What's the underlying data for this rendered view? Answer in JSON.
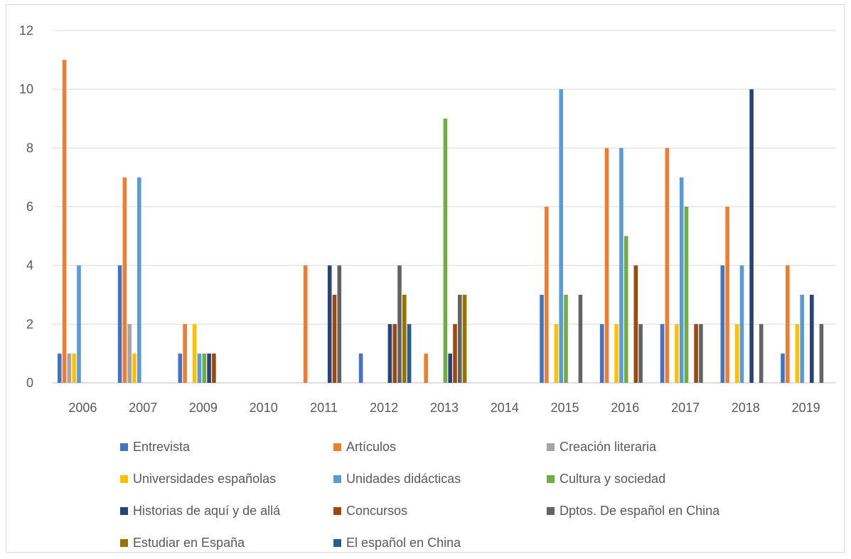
{
  "chart_data": {
    "type": "bar",
    "title": "",
    "xlabel": "",
    "ylabel": "",
    "ylim": [
      0,
      12
    ],
    "y_ticks": [
      "0",
      "2",
      "4",
      "6",
      "8",
      "10",
      "12"
    ],
    "grid": true,
    "legend_position": "bottom",
    "categories": [
      "2006",
      "2007",
      "2009",
      "2010",
      "2011",
      "2012",
      "2013",
      "2014",
      "2015",
      "2016",
      "2017",
      "2018",
      "2019"
    ],
    "series": [
      {
        "name": "Entrevista",
        "color": "#4472c4",
        "values": [
          1,
          4,
          1,
          0,
          0,
          1,
          0,
          0,
          3,
          2,
          2,
          4,
          1
        ]
      },
      {
        "name": "Artículos",
        "color": "#ed7d31",
        "values": [
          11,
          7,
          2,
          0,
          4,
          0,
          1,
          0,
          6,
          8,
          8,
          6,
          4
        ]
      },
      {
        "name": "Creación literaria",
        "color": "#a5a5a5",
        "values": [
          1,
          2,
          0,
          0,
          0,
          0,
          0,
          0,
          0,
          0,
          0,
          0,
          0
        ]
      },
      {
        "name": "Universidades españolas",
        "color": "#ffc000",
        "values": [
          1,
          1,
          2,
          0,
          0,
          0,
          0,
          0,
          2,
          2,
          2,
          2,
          2
        ]
      },
      {
        "name": "Unidades didácticas",
        "color": "#5b9bd5",
        "values": [
          4,
          7,
          1,
          0,
          0,
          0,
          0,
          0,
          10,
          8,
          7,
          4,
          3
        ]
      },
      {
        "name": "Cultura y sociedad",
        "color": "#70ad47",
        "values": [
          0,
          0,
          1,
          0,
          0,
          0,
          9,
          0,
          3,
          5,
          6,
          0,
          0
        ]
      },
      {
        "name": "Historias de aquí y de allá",
        "color": "#264478",
        "values": [
          0,
          0,
          1,
          0,
          4,
          2,
          1,
          0,
          0,
          0,
          0,
          10,
          3
        ]
      },
      {
        "name": "Concursos",
        "color": "#9e480e",
        "values": [
          0,
          0,
          1,
          0,
          3,
          2,
          2,
          0,
          0,
          4,
          2,
          0,
          0
        ]
      },
      {
        "name": "Dptos. De español en China",
        "color": "#636363",
        "values": [
          0,
          0,
          0,
          0,
          4,
          4,
          3,
          0,
          3,
          2,
          2,
          2,
          2
        ]
      },
      {
        "name": "Estudiar en España",
        "color": "#997300",
        "values": [
          0,
          0,
          0,
          0,
          0,
          3,
          3,
          0,
          0,
          0,
          0,
          0,
          0
        ]
      },
      {
        "name": "El español en China",
        "color": "#255e91",
        "values": [
          0,
          0,
          0,
          0,
          0,
          2,
          0,
          0,
          0,
          0,
          0,
          0,
          0
        ]
      }
    ]
  }
}
